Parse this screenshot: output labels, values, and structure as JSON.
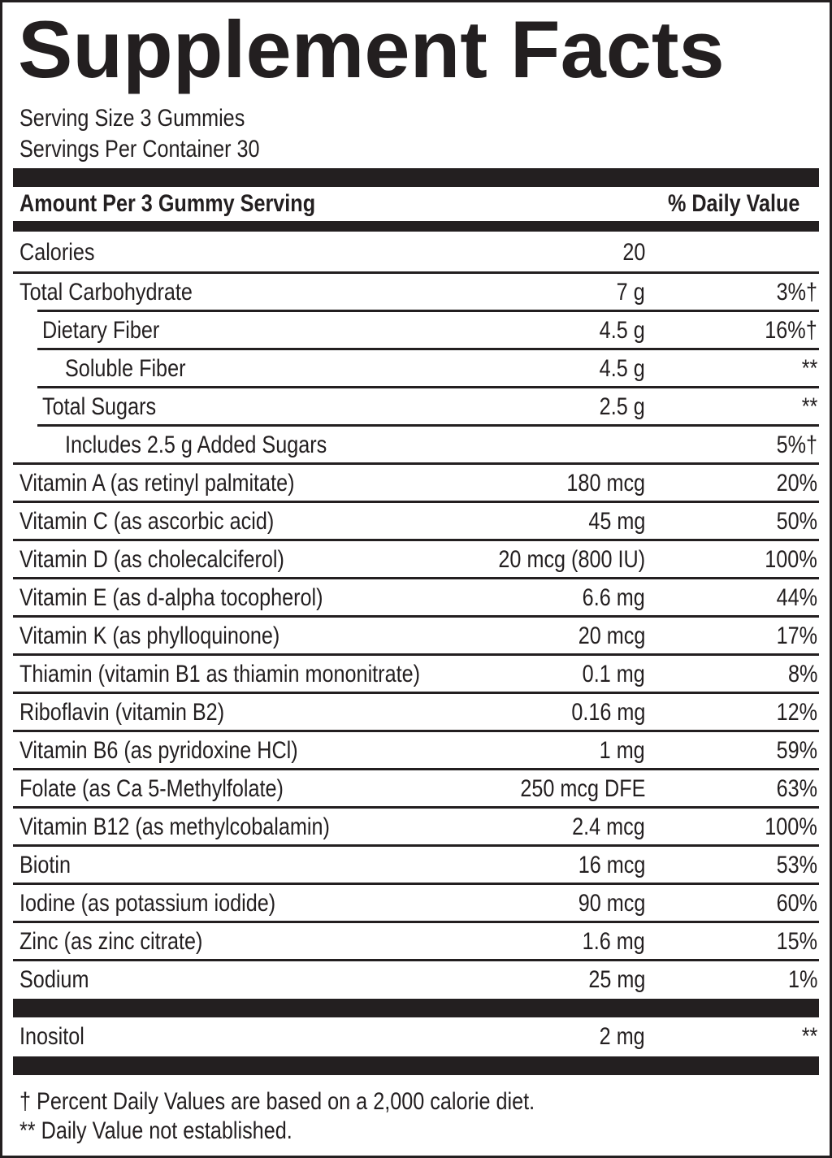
{
  "title": "Supplement Facts",
  "serving_size": "Serving Size 3 Gummies",
  "servings_per_container": "Servings Per Container 30",
  "header": {
    "amount": "Amount Per 3 Gummy Serving",
    "daily_value": "% Daily Value"
  },
  "rows": [
    {
      "name": "Calories",
      "amount": "20",
      "dv": "",
      "indent": 0
    },
    {
      "name": "Total Carbohydrate",
      "amount": "7 g",
      "dv": "3%†",
      "indent": 0
    },
    {
      "name": "Dietary Fiber",
      "amount": "4.5 g",
      "dv": "16%†",
      "indent": 1
    },
    {
      "name": "Soluble Fiber",
      "amount": "4.5 g",
      "dv": "**",
      "indent": 2
    },
    {
      "name": "Total Sugars",
      "amount": "2.5 g",
      "dv": "**",
      "indent": 1
    },
    {
      "name": "Includes 2.5 g Added Sugars",
      "amount": "",
      "dv": "5%†",
      "indent": 2
    },
    {
      "name": "Vitamin A (as retinyl palmitate)",
      "amount": "180 mcg",
      "dv": "20%",
      "indent": 0
    },
    {
      "name": "Vitamin C (as ascorbic acid)",
      "amount": "45 mg",
      "dv": "50%",
      "indent": 0
    },
    {
      "name": "Vitamin D (as cholecalciferol)",
      "amount": "20 mcg (800 IU)",
      "dv": "100%",
      "indent": 0
    },
    {
      "name": "Vitamin E (as d-alpha tocopherol)",
      "amount": "6.6 mg",
      "dv": "44%",
      "indent": 0
    },
    {
      "name": "Vitamin K (as phylloquinone)",
      "amount": "20 mcg",
      "dv": "17%",
      "indent": 0
    },
    {
      "name": "Thiamin (vitamin B1 as thiamin mononitrate)",
      "amount": "0.1 mg",
      "dv": "8%",
      "indent": 0
    },
    {
      "name": "Riboflavin (vitamin B2)",
      "amount": "0.16 mg",
      "dv": "12%",
      "indent": 0
    },
    {
      "name": "Vitamin B6 (as pyridoxine HCl)",
      "amount": "1 mg",
      "dv": "59%",
      "indent": 0
    },
    {
      "name": "Folate (as Ca 5-Methylfolate)",
      "amount": "250 mcg DFE",
      "dv": "63%",
      "indent": 0
    },
    {
      "name": "Vitamin B12 (as methylcobalamin)",
      "amount": "2.4 mcg",
      "dv": "100%",
      "indent": 0
    },
    {
      "name": "Biotin",
      "amount": "16 mcg",
      "dv": "53%",
      "indent": 0
    },
    {
      "name": "Iodine (as potassium iodide)",
      "amount": "90 mcg",
      "dv": "60%",
      "indent": 0
    },
    {
      "name": "Zinc (as zinc citrate)",
      "amount": "1.6 mg",
      "dv": "15%",
      "indent": 0
    },
    {
      "name": "Sodium",
      "amount": "25 mg",
      "dv": "1%",
      "indent": 0
    }
  ],
  "other_rows": [
    {
      "name": "Inositol",
      "amount": "2 mg",
      "dv": "**",
      "indent": 0
    }
  ],
  "footnotes": [
    "† Percent Daily Values are based on a 2,000 calorie diet.",
    "** Daily Value not established."
  ]
}
